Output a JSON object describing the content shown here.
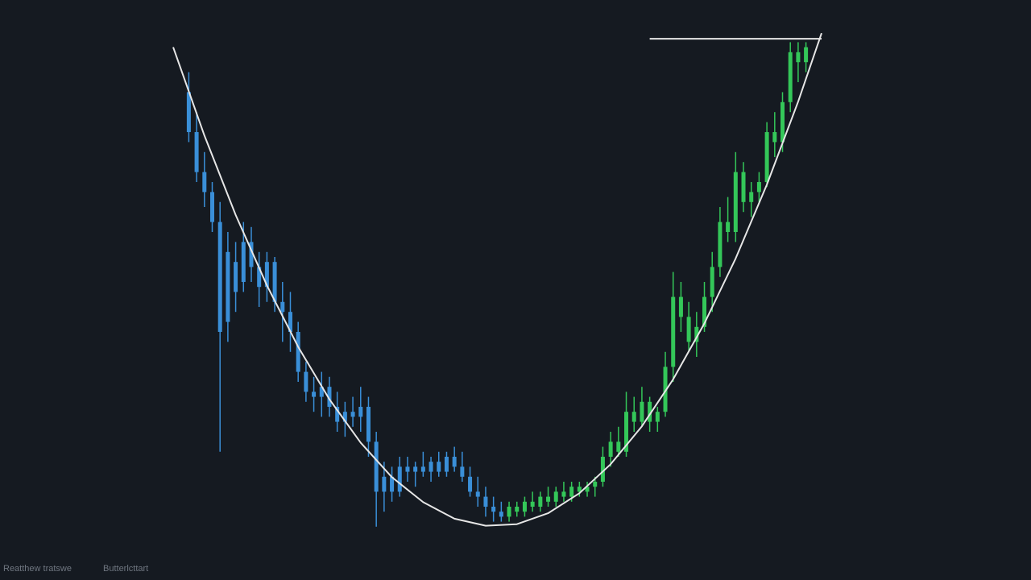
{
  "chart_data": {
    "type": "candlestick",
    "xlim": [
      -2,
      81
    ],
    "ylim": [
      0,
      100
    ],
    "series": [
      {
        "color": "#3a8fd8",
        "x": [
          0,
          1,
          2,
          3,
          4,
          5,
          6,
          7,
          8,
          9,
          10,
          11,
          12,
          13,
          14,
          15,
          16,
          17,
          18,
          19,
          20,
          21,
          22,
          23,
          24,
          25,
          26,
          27,
          28,
          29,
          30,
          31,
          32,
          33,
          34,
          35,
          36,
          37,
          38,
          39,
          40
        ],
        "open": [
          88,
          80,
          72,
          68,
          62,
          42,
          54,
          50,
          58,
          53,
          49,
          54,
          46,
          44,
          40,
          32,
          28,
          27,
          29,
          25,
          22,
          24,
          23,
          25,
          18,
          8,
          11,
          8,
          13,
          12,
          13,
          12,
          14,
          12,
          15,
          13,
          11,
          8,
          7,
          5,
          4
        ],
        "high": [
          92,
          84,
          76,
          70,
          66,
          60,
          58,
          62,
          61,
          56,
          56,
          55,
          50,
          48,
          42,
          34,
          31,
          32,
          31,
          28,
          26,
          27,
          29,
          27,
          20,
          14,
          13,
          15,
          15,
          14,
          16,
          15,
          16,
          16,
          17,
          16,
          13,
          11,
          9,
          7,
          6
        ],
        "low": [
          78,
          70,
          65,
          60,
          16,
          38,
          44,
          48,
          50,
          45,
          46,
          44,
          38,
          36,
          30,
          26,
          24,
          23,
          23,
          20,
          19,
          21,
          20,
          15,
          1,
          4,
          6,
          7,
          10,
          9,
          11,
          10,
          11,
          11,
          12,
          10,
          7,
          5,
          3,
          2,
          2
        ],
        "close": [
          80,
          72,
          68,
          62,
          40,
          56,
          48,
          58,
          53,
          49,
          54,
          46,
          44,
          40,
          32,
          28,
          27,
          29,
          25,
          22,
          24,
          23,
          25,
          18,
          8,
          11,
          8,
          13,
          12,
          13,
          12,
          14,
          12,
          15,
          13,
          11,
          8,
          7,
          5,
          4,
          3
        ]
      },
      {
        "color": "#34c759",
        "x": [
          41,
          42,
          43,
          44,
          45,
          46,
          47,
          48,
          49,
          50,
          51,
          52,
          53,
          54,
          55,
          56,
          57,
          58,
          59,
          60,
          61,
          62,
          63,
          64,
          65,
          66,
          67,
          68,
          69,
          70,
          71,
          72,
          73,
          74,
          75,
          76,
          77,
          78,
          79
        ],
        "open": [
          3,
          5,
          4,
          6,
          5,
          7,
          6,
          8,
          7,
          9,
          8,
          9,
          10,
          15,
          18,
          16,
          24,
          22,
          26,
          22,
          24,
          33,
          47,
          43,
          38,
          41,
          47,
          53,
          62,
          60,
          72,
          66,
          68,
          70,
          80,
          78,
          86,
          96,
          94
        ],
        "high": [
          6,
          6,
          7,
          8,
          8,
          9,
          9,
          10,
          10,
          10,
          10,
          11,
          17,
          20,
          21,
          28,
          27,
          29,
          27,
          25,
          36,
          52,
          50,
          46,
          44,
          50,
          56,
          65,
          67,
          76,
          74,
          70,
          72,
          82,
          84,
          88,
          98,
          98,
          98
        ],
        "low": [
          2,
          3,
          3,
          4,
          4,
          5,
          5,
          6,
          6,
          7,
          7,
          7,
          9,
          13,
          15,
          15,
          20,
          21,
          20,
          20,
          23,
          30,
          40,
          36,
          35,
          40,
          44,
          51,
          58,
          58,
          64,
          63,
          66,
          69,
          75,
          76,
          84,
          90,
          92
        ],
        "close": [
          5,
          4,
          6,
          5,
          7,
          6,
          8,
          7,
          9,
          8,
          9,
          10,
          15,
          18,
          16,
          24,
          22,
          26,
          22,
          24,
          33,
          47,
          43,
          38,
          41,
          47,
          53,
          62,
          60,
          72,
          66,
          68,
          70,
          80,
          78,
          86,
          96,
          94,
          97
        ]
      }
    ],
    "curve": {
      "color": "#e6e6e6",
      "x": [
        -2,
        2,
        6,
        10,
        14,
        18,
        22,
        26,
        30,
        34,
        38,
        42,
        46,
        50,
        54,
        58,
        62,
        66,
        70,
        74,
        78,
        81
      ],
      "values": [
        97.0,
        79.3,
        63.4,
        49.3,
        37.0,
        26.5,
        17.8,
        10.9,
        5.9,
        2.6,
        1.2,
        1.5,
        3.7,
        7.7,
        13.5,
        21.1,
        30.5,
        41.7,
        54.7,
        69.5,
        86.1,
        99.8
      ]
    },
    "resistance_line": {
      "color": "#e6e6e6",
      "x": [
        59,
        81
      ],
      "values": [
        98.7,
        98.7
      ]
    },
    "footer_texts": [
      "Reatthew tratswe",
      "Butterlcttart"
    ]
  }
}
